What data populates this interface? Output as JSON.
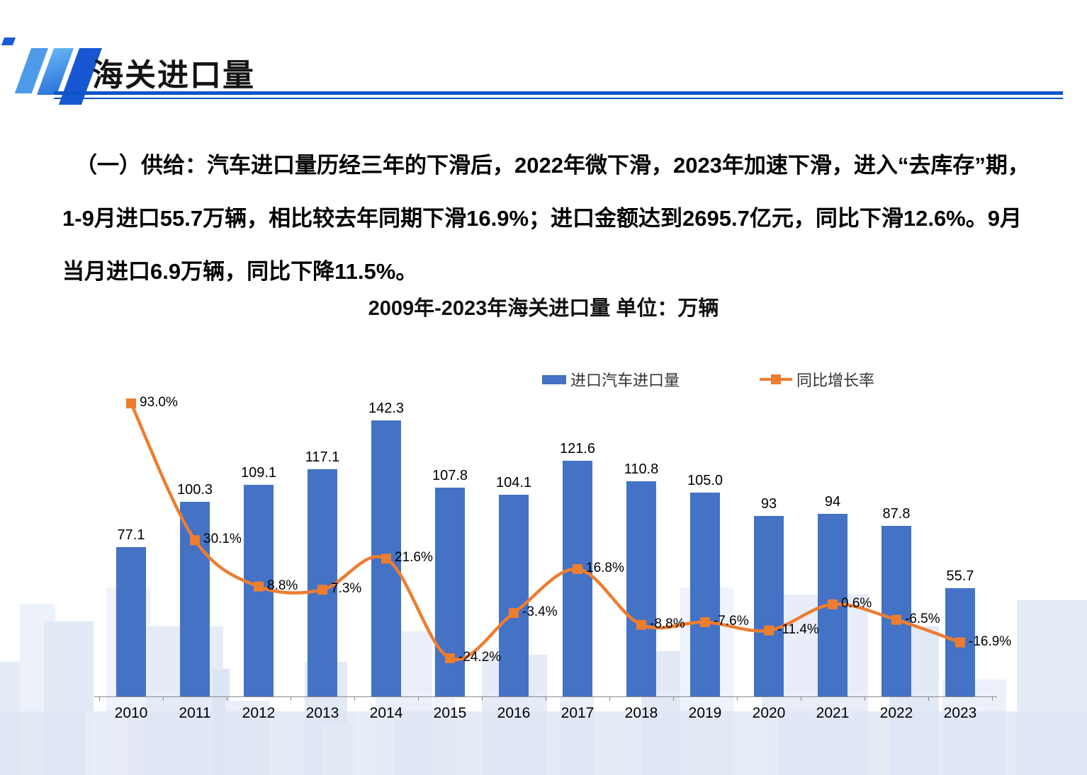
{
  "header": {
    "title": "海关进口量"
  },
  "paragraph": {
    "lines": [
      "（一）供给：汽车进口量历经三年的下滑后，2022年微下滑，2023年加速下滑，进入“去库存”期，",
      "1-9月进口55.7万辆，相比较去年同期下滑16.9%；进口金额达到2695.7亿元，同比下滑12.6%。9月",
      "当月进口6.9万辆，同比下降11.5%。"
    ]
  },
  "chart_data": {
    "type": "bar",
    "subtype": "bar-line-combo",
    "title": "2009年-2023年海关进口量  单位：万辆",
    "categories": [
      "2010",
      "2011",
      "2012",
      "2013",
      "2014",
      "2015",
      "2016",
      "2017",
      "2018",
      "2019",
      "2020",
      "2021",
      "2022",
      "2023"
    ],
    "series": [
      {
        "name": "进口汽车进口量",
        "type": "bar",
        "color": "#4472C4",
        "values": [
          77.1,
          100.3,
          109.1,
          117.1,
          142.3,
          107.8,
          104.1,
          121.6,
          110.8,
          105.0,
          93,
          94,
          87.8,
          55.7
        ],
        "labels": [
          "77.1",
          "100.3",
          "109.1",
          "117.1",
          "142.3",
          "107.8",
          "104.1",
          "121.6",
          "110.8",
          "105.0",
          "93",
          "94",
          "87.8",
          "55.7"
        ]
      },
      {
        "name": "同比增长率",
        "type": "line",
        "color": "#ED7D31",
        "values": [
          93.0,
          30.1,
          8.8,
          7.3,
          21.6,
          -24.2,
          -3.4,
          16.8,
          -8.8,
          -7.6,
          -11.4,
          0.6,
          -6.5,
          -16.9
        ],
        "labels": [
          "93.0%",
          "30.1%",
          "8.8%",
          "7.3%",
          "21.6%",
          "-24.2%",
          "-3.4%",
          "16.8%",
          "-8.8%",
          "-7.6%",
          "-11.4%",
          "0.6%",
          "-6.5%",
          "-16.9%"
        ]
      }
    ],
    "legend": {
      "position": "top",
      "entries": [
        "进口汽车进口量",
        "同比增长率"
      ]
    },
    "grid": false,
    "value_axis_visible": false
  },
  "colors": {
    "bar": "#4472C4",
    "line": "#ED7D31",
    "rule": "#0d56c6",
    "axis": "#8a8a8a",
    "skyline1": "#e3eaf7",
    "skyline2": "#d9e3f3",
    "skyline3": "#ecf1fa"
  }
}
